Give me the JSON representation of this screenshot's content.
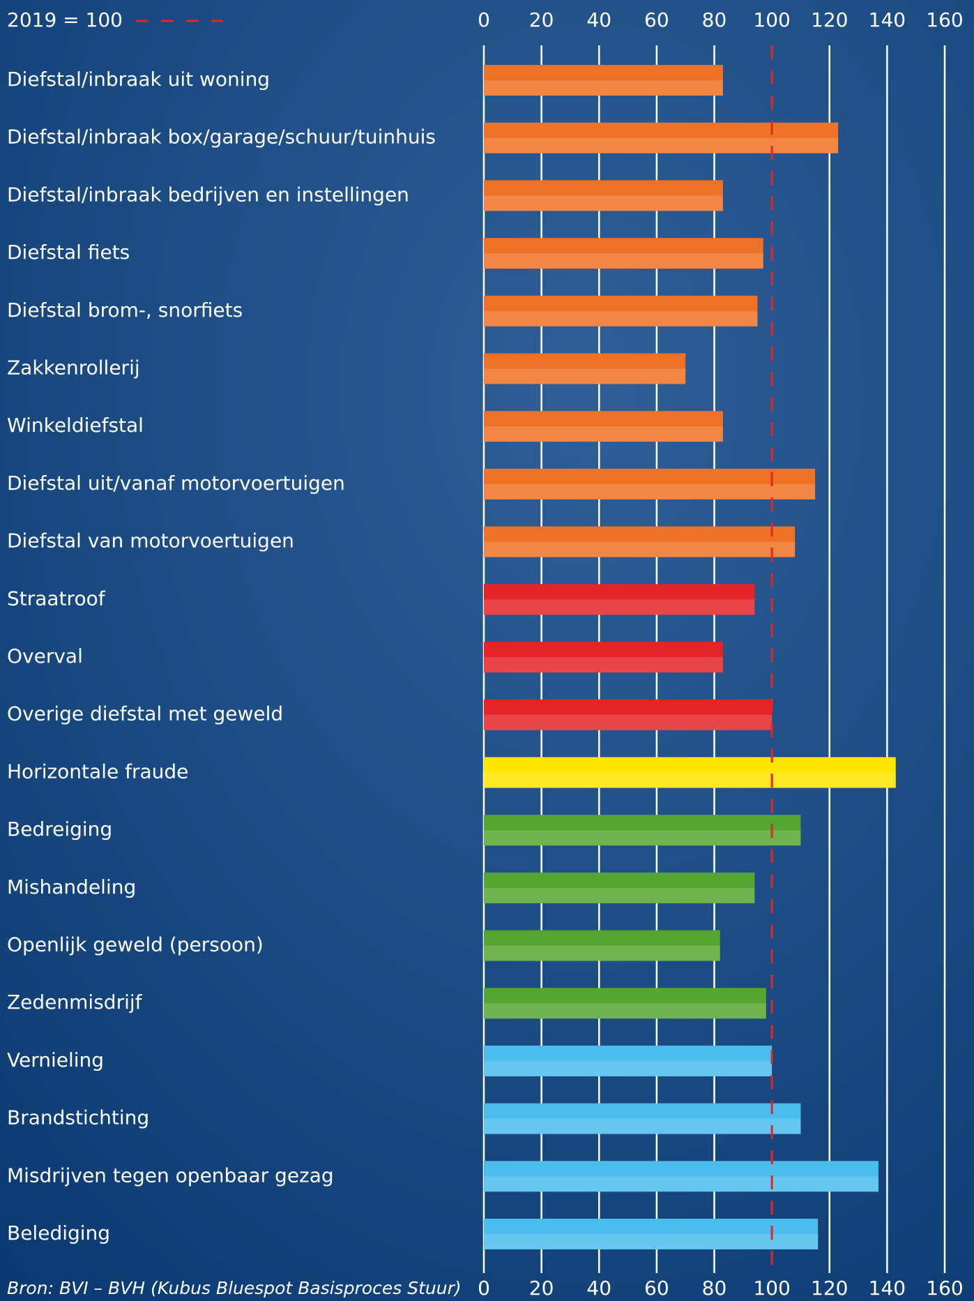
{
  "chart_data": {
    "type": "bar",
    "orientation": "horizontal",
    "categories": [
      "Diefstal/inbraak uit woning",
      "Diefstal/inbraak box/garage/schuur/tuinhuis",
      "Diefstal/inbraak bedrijven en instellingen",
      "Diefstal fiets",
      "Diefstal brom-, snorfiets",
      "Zakkenrollerij",
      "Winkeldiefstal",
      "Diefstal uit/vanaf motorvoertuigen",
      "Diefstal van motorvoertuigen",
      "Straatroof",
      "Overval",
      "Overige diefstal met geweld",
      "Horizontale fraude",
      "Bedreiging",
      "Mishandeling",
      "Openlijk geweld (persoon)",
      "Zedenmisdrijf",
      "Vernieling",
      "Brandstichting",
      "Misdrijven tegen openbaar gezag",
      "Belediging"
    ],
    "values": [
      83,
      123,
      83,
      97,
      95,
      70,
      83,
      115,
      108,
      94,
      83,
      100,
      143,
      110,
      94,
      82,
      98,
      100,
      110,
      137,
      116
    ],
    "colors": [
      "#ef7125",
      "#ef7125",
      "#ef7125",
      "#ef7125",
      "#ef7125",
      "#ef7125",
      "#ef7125",
      "#ef7125",
      "#ef7125",
      "#e52427",
      "#e52427",
      "#e52427",
      "#ffe600",
      "#55a630",
      "#55a630",
      "#55a630",
      "#55a630",
      "#4bbded",
      "#4bbded",
      "#4bbded",
      "#4bbded"
    ],
    "xlim": [
      0,
      160
    ],
    "xticks": [
      0,
      20,
      40,
      60,
      80,
      100,
      120,
      140,
      160
    ],
    "grid": true,
    "reference_line": {
      "value": 100,
      "label": "2019 = 100",
      "color": "#e52427"
    },
    "source": "Bron: BVI – BVH (Kubus Bluespot Basisproces Stuur)"
  }
}
